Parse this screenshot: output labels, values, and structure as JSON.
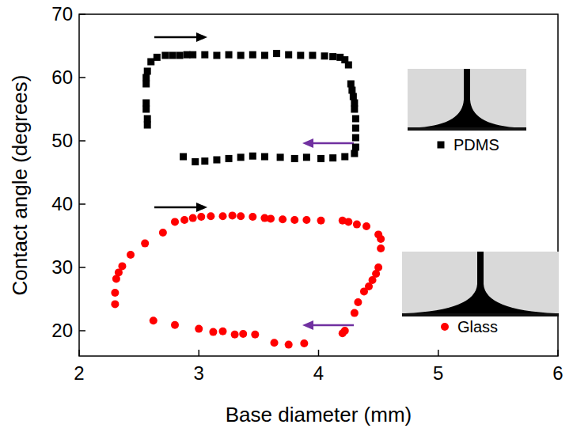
{
  "chart_data": {
    "type": "scatter",
    "x_label": "Base diameter (mm)",
    "y_label": "Contact angle (degrees)",
    "xlim": [
      2,
      6
    ],
    "xticks": [
      2,
      3,
      4,
      5,
      6
    ],
    "ylim": [
      16,
      70
    ],
    "yticks": [
      20,
      30,
      40,
      50,
      60,
      70
    ],
    "legend": "right",
    "series": [
      {
        "name": "PDMS",
        "color": "#000000",
        "marker": "square",
        "x": [
          2.57,
          2.57,
          2.56,
          2.56,
          2.56,
          2.56,
          2.57,
          2.6,
          2.65,
          2.72,
          2.78,
          2.84,
          2.9,
          2.95,
          3.05,
          3.15,
          3.25,
          3.35,
          3.45,
          3.55,
          3.65,
          3.75,
          3.85,
          3.95,
          4.05,
          4.12,
          4.18,
          4.22,
          4.25,
          4.27,
          4.28,
          4.29,
          4.3,
          4.3,
          4.31,
          4.31,
          4.31,
          4.31,
          4.3,
          4.22,
          4.12,
          4.02,
          3.9,
          3.8,
          3.68,
          3.55,
          3.45,
          3.35,
          3.25,
          3.15,
          3.05,
          2.97,
          2.87
        ],
        "values": [
          52.5,
          53.5,
          55,
          56,
          59,
          60,
          61,
          62.5,
          63.2,
          63.5,
          63.5,
          63.5,
          63.6,
          63.6,
          63.6,
          63.5,
          63.6,
          63.5,
          63.6,
          63.5,
          63.8,
          63.6,
          63.5,
          63.5,
          63.4,
          63.3,
          63.2,
          62.8,
          62,
          59,
          58,
          57,
          56,
          55,
          53.5,
          52,
          50.5,
          49,
          48,
          47.5,
          47.3,
          47.2,
          47.4,
          47.2,
          47.4,
          47.5,
          47.6,
          47.4,
          47.2,
          47.0,
          46.8,
          46.7,
          47.5
        ]
      },
      {
        "name": "Glass",
        "color": "#ff0000",
        "marker": "circle",
        "x": [
          2.3,
          2.3,
          2.31,
          2.33,
          2.36,
          2.43,
          2.55,
          2.7,
          2.8,
          2.88,
          2.95,
          3.02,
          3.1,
          3.2,
          3.28,
          3.35,
          3.45,
          3.55,
          3.6,
          3.7,
          3.8,
          3.9,
          4.02,
          4.2,
          4.25,
          4.32,
          4.4,
          4.5,
          4.52,
          4.52,
          4.5,
          4.48,
          4.45,
          4.42,
          4.38,
          4.33,
          4.3,
          4.22,
          4.2,
          3.88,
          3.75,
          3.63,
          3.47,
          3.37,
          3.3,
          3.2,
          3.12,
          3.0,
          2.8,
          2.62
        ],
        "values": [
          24.2,
          26,
          28.2,
          29.2,
          30.2,
          32,
          33.8,
          35.5,
          37.2,
          37.5,
          37.8,
          38,
          38.1,
          38.1,
          38.2,
          38.1,
          38,
          37.8,
          37.7,
          37.6,
          37.5,
          37.5,
          37.4,
          37.4,
          37.2,
          36.8,
          36.5,
          35.2,
          34.5,
          33,
          30,
          29,
          28,
          27,
          26.2,
          24.5,
          22.8,
          20,
          19.6,
          18,
          17.8,
          18.1,
          19.4,
          19.5,
          19.4,
          19.9,
          19.8,
          20.3,
          20.9,
          21.6
        ]
      }
    ]
  }
}
